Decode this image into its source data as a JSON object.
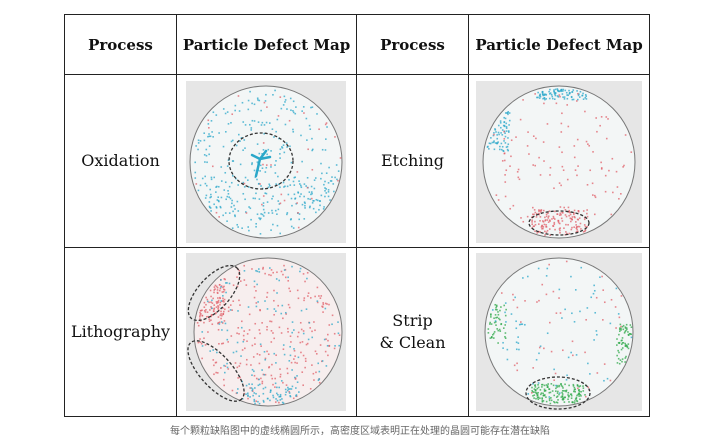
{
  "table": {
    "headers": [
      "Process",
      "Particle Defect Map",
      "Process",
      "Particle Defect Map"
    ],
    "rows": [
      {
        "left_process": "Oxidation",
        "left_map": "oxidation-defect-map",
        "right_process": "Etching",
        "right_map": "etching-defect-map"
      },
      {
        "left_process": "Lithography",
        "left_map": "lithography-defect-map",
        "right_process": "Strip\n& Clean",
        "right_map": "strip-clean-defect-map"
      }
    ]
  },
  "colors": {
    "cyan_particles": "#2aa7c9",
    "red_particles": "#e0606a",
    "green_particles": "#2fa84a",
    "wafer_bg": "#f3f6f6",
    "map_bg": "#e6e6e6"
  },
  "caption": "每个颗粒缺陷图中的虚线椭圆所示，高密度区域表明正在处理的晶圆可能存在潜在缺陷"
}
